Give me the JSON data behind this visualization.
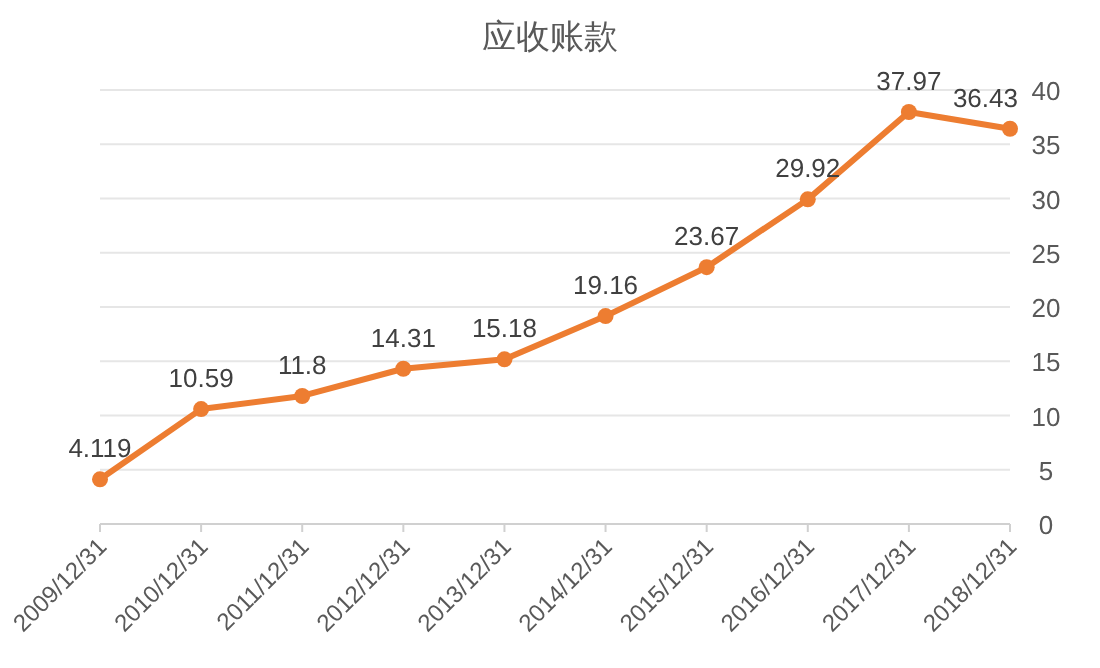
{
  "chart_data": {
    "type": "line",
    "title": "应收账款",
    "categories": [
      "2009/12/31",
      "2010/12/31",
      "2011/12/31",
      "2012/12/31",
      "2013/12/31",
      "2014/12/31",
      "2015/12/31",
      "2016/12/31",
      "2017/12/31",
      "2018/12/31"
    ],
    "series": [
      {
        "color": "#ed7d31",
        "values": [
          4.119,
          10.59,
          11.8,
          14.31,
          15.18,
          19.16,
          23.67,
          29.92,
          37.97,
          36.43
        ]
      }
    ],
    "ylim": [
      0,
      40
    ],
    "yticks": [
      0,
      5,
      10,
      15,
      20,
      25,
      30,
      35,
      40
    ],
    "grid": "y",
    "marker": "circle",
    "line_style": "solid",
    "data_labels": true
  }
}
